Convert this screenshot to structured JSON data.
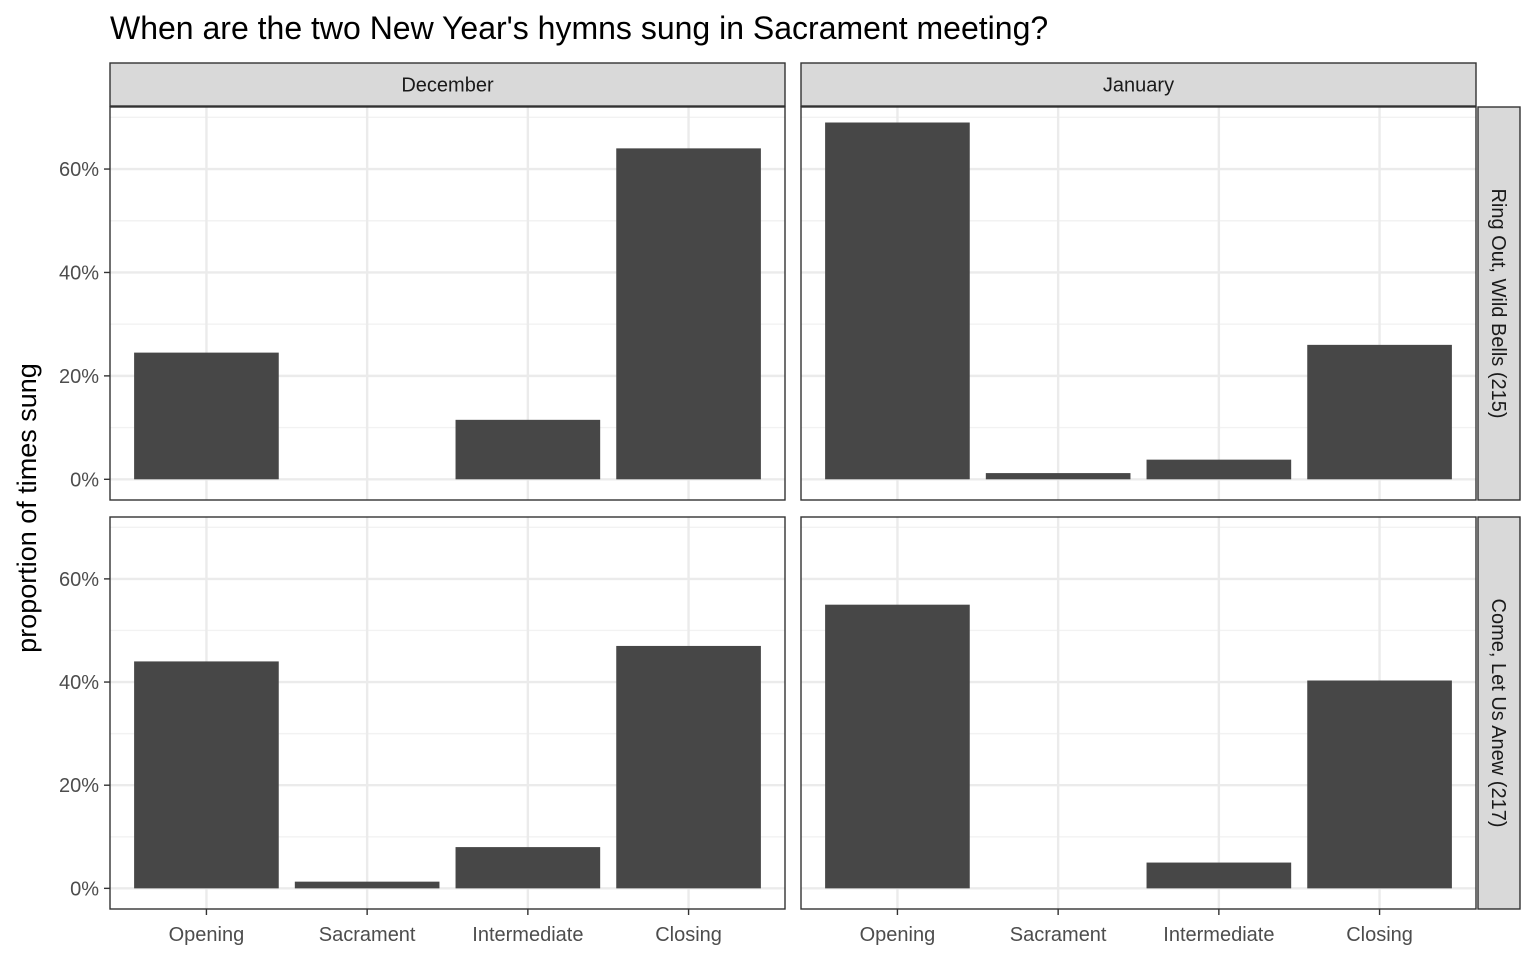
{
  "chart_data": {
    "type": "bar",
    "title": "When are the two New Year's hymns sung in Sacrament meeting?",
    "ylabel": "proportion of times sung",
    "xlabel": "",
    "categories": [
      "Opening",
      "Sacrament",
      "Intermediate",
      "Closing"
    ],
    "columns": [
      "December",
      "January"
    ],
    "rows": [
      "Ring Out, Wild Bells (215)",
      "Come, Let Us Anew (217)"
    ],
    "y_ticks": [
      "0%",
      "20%",
      "40%",
      "60%"
    ],
    "ylim": [
      0,
      72
    ],
    "grid": true,
    "panels": [
      {
        "column": "December",
        "row": "Ring Out, Wild Bells (215)",
        "values": [
          24.5,
          0,
          11.5,
          64
        ]
      },
      {
        "column": "January",
        "row": "Ring Out, Wild Bells (215)",
        "values": [
          69,
          1.2,
          3.8,
          26
        ]
      },
      {
        "column": "December",
        "row": "Come, Let Us Anew (217)",
        "values": [
          44,
          1.3,
          8,
          47
        ]
      },
      {
        "column": "January",
        "row": "Come, Let Us Anew (217)",
        "values": [
          55,
          0,
          5,
          40.3
        ]
      }
    ],
    "colors": {
      "bar": "#474747",
      "strip_fill": "#d9d9d9",
      "grid_major": "#ebebeb",
      "grid_minor": "#f2f2f2",
      "border": "#333333"
    }
  }
}
